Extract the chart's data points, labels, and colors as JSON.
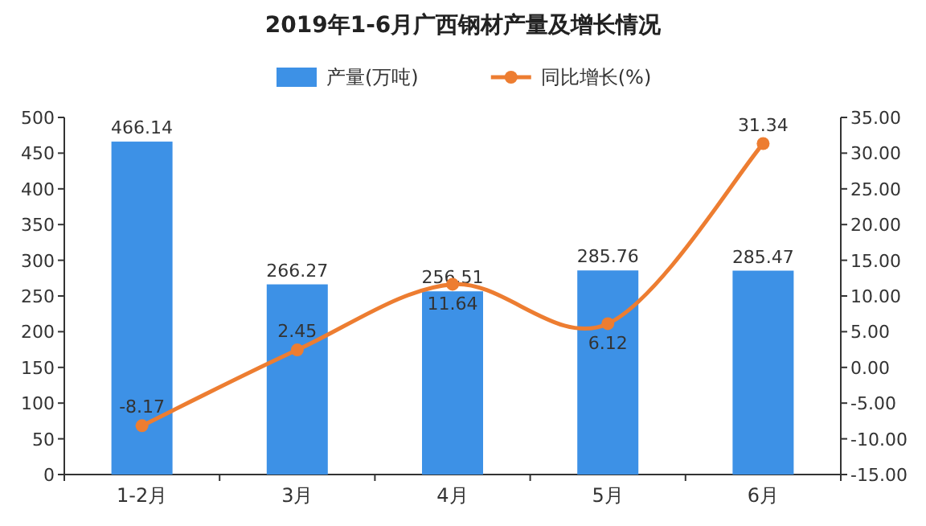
{
  "chart_data": {
    "type": "bar",
    "title": "2019年1-6月广西钢材产量及增长情况",
    "categories": [
      "1-2月",
      "3月",
      "4月",
      "5月",
      "6月"
    ],
    "series": [
      {
        "name": "产量(万吨)",
        "color": "#3d91e6",
        "values": [
          466.14,
          266.27,
          256.51,
          285.76,
          285.47
        ]
      },
      {
        "name": "同比增长(%)",
        "type": "line",
        "axis": "y2",
        "color": "#ed7d31",
        "values": [
          -8.17,
          2.45,
          11.64,
          6.12,
          31.34
        ]
      }
    ],
    "ylim": [
      0,
      500
    ],
    "yticks": [
      0,
      50,
      100,
      150,
      200,
      250,
      300,
      350,
      400,
      450,
      500
    ],
    "y2lim": [
      -15,
      35
    ],
    "y2ticks": [
      {
        "value": -15,
        "label": "-15.00"
      },
      {
        "value": -10,
        "label": "-10.00"
      },
      {
        "value": -5,
        "label": "-5.00"
      },
      {
        "value": 0,
        "label": "0.00"
      },
      {
        "value": 5,
        "label": "5.00"
      },
      {
        "value": 10,
        "label": "10.00"
      },
      {
        "value": 15,
        "label": "15.00"
      },
      {
        "value": 20,
        "label": "20.00"
      },
      {
        "value": 25,
        "label": "25.00"
      },
      {
        "value": 30,
        "label": "30.00"
      },
      {
        "value": 35,
        "label": "35.00"
      }
    ],
    "data_labels": true,
    "legend": "top",
    "marker": "circle"
  }
}
